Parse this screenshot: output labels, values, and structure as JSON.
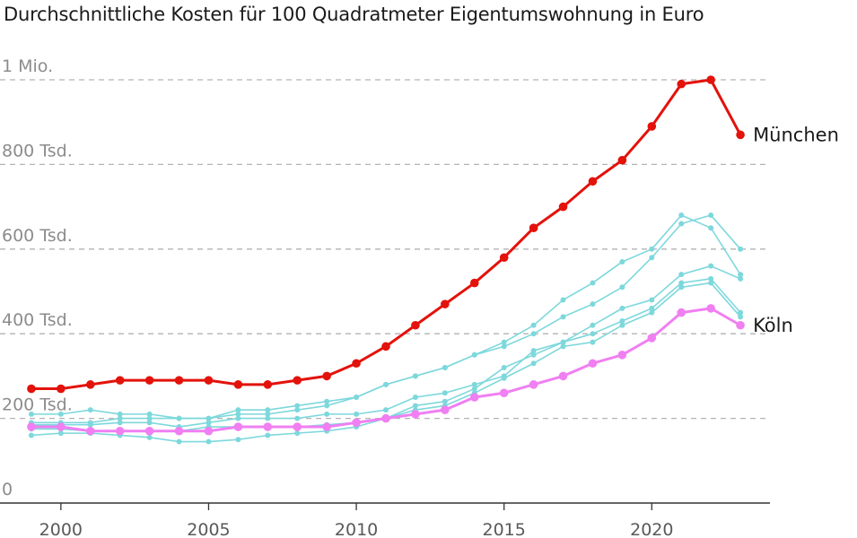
{
  "chart_data": {
    "type": "line",
    "title": "Durchschnittliche Kosten für 100 Quadratmeter Eigentumswohnung in Euro",
    "xlabel": "",
    "ylabel": "",
    "x": [
      1999,
      2000,
      2001,
      2002,
      2003,
      2004,
      2005,
      2006,
      2007,
      2008,
      2009,
      2010,
      2011,
      2012,
      2013,
      2014,
      2015,
      2016,
      2017,
      2018,
      2019,
      2020,
      2021,
      2022,
      2023
    ],
    "xlim": [
      1998,
      2024
    ],
    "ylim": [
      0,
      1000000
    ],
    "x_ticks": [
      2000,
      2005,
      2010,
      2015,
      2020
    ],
    "x_tick_labels": [
      "2000",
      "2005",
      "2010",
      "2015",
      "2020"
    ],
    "y_ticks": [
      0,
      200000,
      400000,
      600000,
      800000,
      1000000
    ],
    "y_tick_labels": [
      "0",
      "200 Tsd.",
      "400 Tsd.",
      "600 Tsd.",
      "800 Tsd.",
      "1 Mio."
    ],
    "grid": "horizontal dashed",
    "series": [
      {
        "name": "",
        "color": "#7dd8dc",
        "highlight": false,
        "values": [
          210000,
          210000,
          220000,
          210000,
          210000,
          200000,
          200000,
          220000,
          220000,
          230000,
          240000,
          250000,
          280000,
          300000,
          320000,
          350000,
          380000,
          420000,
          480000,
          520000,
          570000,
          600000,
          680000,
          650000,
          540000
        ]
      },
      {
        "name": "",
        "color": "#7dd8dc",
        "highlight": false,
        "values": [
          190000,
          190000,
          190000,
          200000,
          200000,
          200000,
          200000,
          210000,
          210000,
          220000,
          230000,
          250000,
          280000,
          300000,
          320000,
          350000,
          370000,
          400000,
          440000,
          470000,
          510000,
          580000,
          660000,
          680000,
          600000
        ]
      },
      {
        "name": "",
        "color": "#7dd8dc",
        "highlight": false,
        "values": [
          185000,
          185000,
          185000,
          190000,
          190000,
          180000,
          190000,
          200000,
          200000,
          200000,
          210000,
          210000,
          220000,
          250000,
          260000,
          280000,
          300000,
          360000,
          380000,
          420000,
          460000,
          480000,
          540000,
          560000,
          530000
        ]
      },
      {
        "name": "",
        "color": "#7dd8dc",
        "highlight": false,
        "values": [
          175000,
          175000,
          170000,
          170000,
          170000,
          170000,
          180000,
          180000,
          180000,
          180000,
          185000,
          190000,
          200000,
          230000,
          240000,
          270000,
          320000,
          350000,
          380000,
          400000,
          430000,
          460000,
          520000,
          530000,
          450000
        ]
      },
      {
        "name": "",
        "color": "#7dd8dc",
        "highlight": false,
        "values": [
          160000,
          165000,
          165000,
          160000,
          155000,
          145000,
          145000,
          150000,
          160000,
          165000,
          170000,
          180000,
          200000,
          220000,
          230000,
          260000,
          295000,
          330000,
          370000,
          380000,
          420000,
          450000,
          510000,
          520000,
          440000
        ]
      },
      {
        "name": "München",
        "color": "#e3120b",
        "highlight": true,
        "values": [
          270000,
          270000,
          280000,
          290000,
          290000,
          290000,
          290000,
          280000,
          280000,
          290000,
          300000,
          330000,
          370000,
          420000,
          470000,
          520000,
          580000,
          650000,
          700000,
          760000,
          810000,
          890000,
          990000,
          1000000,
          870000
        ]
      },
      {
        "name": "Köln",
        "color": "#f07ff2",
        "highlight": true,
        "values": [
          180000,
          180000,
          170000,
          170000,
          170000,
          170000,
          170000,
          180000,
          180000,
          180000,
          180000,
          190000,
          200000,
          210000,
          220000,
          250000,
          260000,
          280000,
          300000,
          330000,
          350000,
          390000,
          450000,
          460000,
          420000
        ]
      }
    ]
  }
}
